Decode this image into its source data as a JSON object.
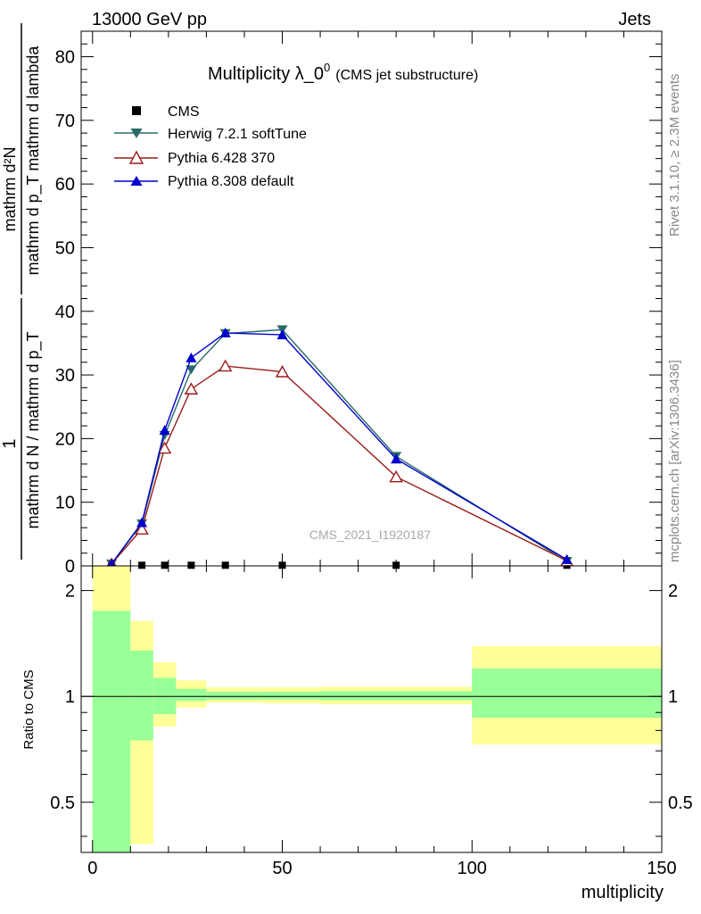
{
  "header": {
    "left": "13000 GeV pp",
    "right": "Jets"
  },
  "side_texts": {
    "rivet": "Rivet 3.1.10, ≥ 2.3M events",
    "mcplots": "mcplots.cern.ch [arXiv:1306.3436]"
  },
  "colors": {
    "cms": "#000000",
    "herwig": "#2a6a6a",
    "pythia6": "#9b1b1b",
    "pythia8": "#0000cc",
    "band_inner": "#99ff99",
    "band_outer": "#ffff99"
  },
  "chart_data": [
    {
      "type": "line",
      "title": "Multiplicity λ_0",
      "title_sup": "0",
      "subtitle": "(CMS jet substructure)",
      "watermark": "CMS_2021_I1920187",
      "ylabel_num": "mathrm d²N",
      "ylabel_den": "mathrm d p_T mathrm d lambda",
      "ylabel_pre_num": "1",
      "ylabel_pre_den": "mathrm d N / mathrm d p_T",
      "ylim": [
        0,
        84
      ],
      "xlim": [
        -3,
        150
      ],
      "yticks": [
        0,
        10,
        20,
        30,
        40,
        50,
        60,
        70,
        80
      ],
      "series": [
        {
          "name": "CMS",
          "key": "cms",
          "marker": "square",
          "x": [
            5,
            13,
            19,
            26,
            35,
            50,
            80,
            125
          ],
          "y": [
            0.1,
            0.1,
            0.1,
            0.1,
            0.1,
            0.1,
            0.1,
            0.1
          ]
        },
        {
          "name": "Herwig 7.2.1 softTune",
          "key": "herwig",
          "marker": "triangle-down",
          "x": [
            5,
            13,
            19,
            26,
            35,
            50,
            80,
            125
          ],
          "y": [
            0.3,
            6.6,
            20.5,
            30.8,
            36.5,
            37.1,
            17.2,
            0.7
          ]
        },
        {
          "name": "Pythia 6.428 370",
          "key": "pythia6",
          "marker": "triangle-up-open",
          "x": [
            5,
            13,
            19,
            26,
            35,
            50,
            80,
            125
          ],
          "y": [
            0.3,
            5.8,
            18.5,
            27.8,
            31.4,
            30.5,
            14.0,
            0.8
          ]
        },
        {
          "name": "Pythia 8.308 default",
          "key": "pythia8",
          "marker": "triangle-up",
          "x": [
            5,
            13,
            19,
            26,
            35,
            50,
            80,
            125
          ],
          "y": [
            0.3,
            6.8,
            21.3,
            32.7,
            36.6,
            36.3,
            16.8,
            1.0
          ]
        }
      ]
    },
    {
      "type": "area",
      "ylabel": "Ratio to CMS",
      "xlabel": "multiplicity",
      "ylim": [
        0.36,
        2.35
      ],
      "xlim": [
        -3,
        150
      ],
      "yticks": [
        0.5,
        1,
        2
      ],
      "ytick_labels": [
        "0.5",
        "1",
        "2"
      ],
      "xticks": [
        0,
        50,
        100,
        150
      ],
      "xtick_labels": [
        "0",
        "50",
        "100",
        "150"
      ],
      "reference": 1,
      "bands": [
        {
          "x0": 0,
          "x1": 10,
          "inner": [
            0.36,
            1.75
          ],
          "outer": [
            0.36,
            2.35
          ]
        },
        {
          "x0": 10,
          "x1": 16,
          "inner": [
            0.75,
            1.35
          ],
          "outer": [
            0.38,
            1.64
          ]
        },
        {
          "x0": 16,
          "x1": 22,
          "inner": [
            0.89,
            1.13
          ],
          "outer": [
            0.82,
            1.25
          ]
        },
        {
          "x0": 22,
          "x1": 30,
          "inner": [
            0.97,
            1.05
          ],
          "outer": [
            0.93,
            1.11
          ]
        },
        {
          "x0": 30,
          "x1": 45,
          "inner": [
            0.98,
            1.03
          ],
          "outer": [
            0.96,
            1.06
          ]
        },
        {
          "x0": 45,
          "x1": 60,
          "inner": [
            0.98,
            1.03
          ],
          "outer": [
            0.955,
            1.06
          ]
        },
        {
          "x0": 60,
          "x1": 100,
          "inner": [
            0.975,
            1.035
          ],
          "outer": [
            0.95,
            1.065
          ]
        },
        {
          "x0": 100,
          "x1": 150,
          "inner": [
            0.87,
            1.2
          ],
          "outer": [
            0.73,
            1.39
          ]
        }
      ]
    }
  ]
}
